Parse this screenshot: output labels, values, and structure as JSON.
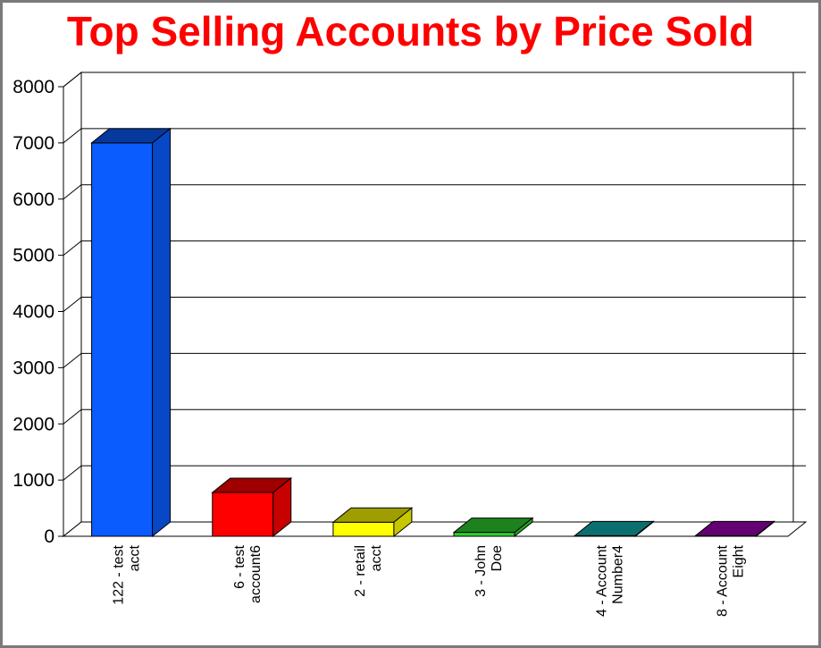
{
  "chart_data": {
    "type": "bar",
    "title": "Top Selling Accounts by Price Sold",
    "xlabel": "",
    "ylabel": "",
    "categories": [
      [
        "122 - test",
        "acct"
      ],
      [
        "6 - test",
        "account6"
      ],
      [
        "2 - retail",
        "acct"
      ],
      [
        "3 - John",
        "Doe"
      ],
      [
        "4 - Account",
        "Number4"
      ],
      [
        "8 - Account",
        "Eight"
      ]
    ],
    "values": [
      7000,
      780,
      250,
      70,
      10,
      10
    ],
    "colors": [
      "#0a5cff",
      "#ff0000",
      "#ffff00",
      "#2ed12e",
      "#12b3b3",
      "#a000b8"
    ],
    "ylim": [
      0,
      8000
    ],
    "yticks": [
      0,
      1000,
      2000,
      3000,
      4000,
      5000,
      6000,
      7000,
      8000
    ],
    "grid": true,
    "style": "3d-bar"
  }
}
